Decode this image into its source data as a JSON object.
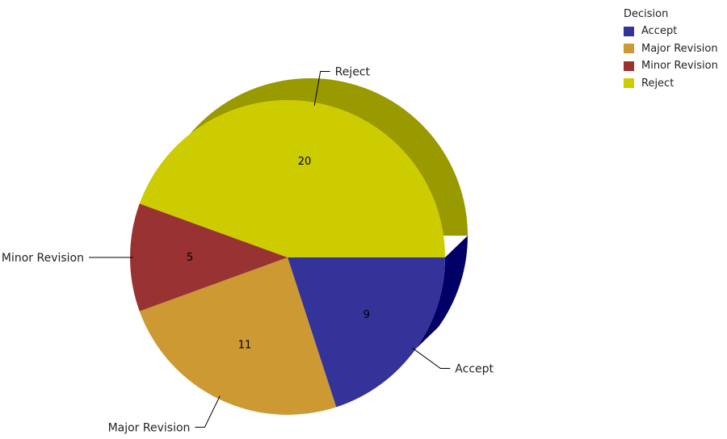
{
  "chart_data": {
    "type": "pie",
    "legend_title": "Decision",
    "legend_position": "top-right",
    "categories": [
      "Accept",
      "Major Revision",
      "Minor Revision",
      "Reject"
    ],
    "values": [
      9,
      11,
      5,
      20
    ],
    "colors": [
      "#333399",
      "#CC9933",
      "#993333",
      "#CCCC00"
    ],
    "side_colors": [
      "#000066",
      "#996600",
      "#660000",
      "#999900"
    ]
  }
}
